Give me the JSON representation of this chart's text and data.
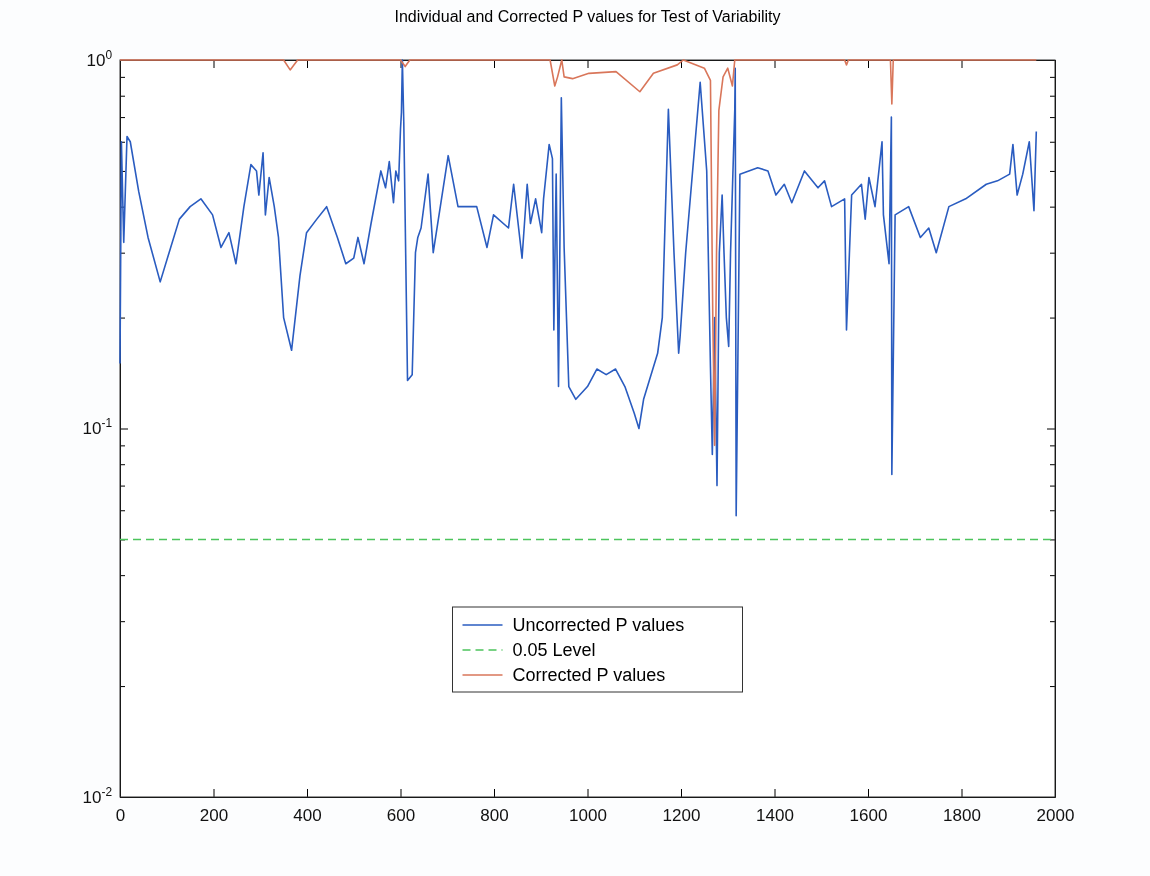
{
  "chart_data": {
    "type": "line",
    "title": "Individual and Corrected P values for Test of Variability",
    "log": "y",
    "xlim": [
      0,
      2000
    ],
    "xticks": [
      0,
      200,
      400,
      600,
      800,
      1000,
      1200,
      1400,
      1600,
      1800,
      2000
    ],
    "ylim": [
      0.01,
      1
    ],
    "yticks": [
      {
        "value": 0.01,
        "label": "10$^{-2}$"
      },
      {
        "value": 0.02,
        "label": null
      },
      {
        "value": 0.03,
        "label": null
      },
      {
        "value": 0.04,
        "label": null
      },
      {
        "value": 0.05,
        "label": null
      },
      {
        "value": 0.06,
        "label": null
      },
      {
        "value": 0.07,
        "label": null
      },
      {
        "value": 0.08,
        "label": null
      },
      {
        "value": 0.09,
        "label": null
      },
      {
        "value": 0.1,
        "label": "10$^{-1}$"
      },
      {
        "value": 0.2,
        "label": null
      },
      {
        "value": 0.3,
        "label": null
      },
      {
        "value": 0.4,
        "label": null
      },
      {
        "value": 0.5,
        "label": null
      },
      {
        "value": 0.6,
        "label": null
      },
      {
        "value": 0.7,
        "label": null
      },
      {
        "value": 0.8,
        "label": null
      },
      {
        "value": 0.9,
        "label": null
      },
      {
        "value": 1,
        "label": "10$^{0}$"
      }
    ],
    "grid": false,
    "legend": "bottom",
    "line_style": "solid",
    "marker": "none",
    "ref_lines": [
      {
        "axis": "y",
        "value": 0.05,
        "label": "0.05 Level",
        "color": "#4cc45c",
        "line_style": "dashed"
      }
    ],
    "series": [
      {
        "name": "Uncorrected P values",
        "color": "#2a5cc0",
        "x": [
          0,
          3,
          8,
          15,
          22,
          40,
          60,
          86,
          105,
          127,
          150,
          173,
          198,
          216,
          233,
          248,
          265,
          280,
          292,
          297,
          306,
          311,
          319,
          330,
          339,
          350,
          367,
          385,
          399,
          421,
          442,
          465,
          483,
          500,
          509,
          522,
          537,
          558,
          568,
          576,
          585,
          590,
          596,
          600,
          602,
          604,
          607,
          615,
          625,
          632,
          637,
          644,
          659,
          670,
          702,
          723,
          763,
          785,
          799,
          831,
          842,
          860,
          871,
          878,
          889,
          902,
          906,
          918,
          925,
          928,
          933,
          938,
          944,
          950,
          960,
          975,
          1000,
          1020,
          1040,
          1060,
          1080,
          1100,
          1110,
          1120,
          1150,
          1160,
          1173,
          1185,
          1195,
          1198,
          1210,
          1241,
          1255,
          1263,
          1267,
          1272,
          1277,
          1282,
          1288,
          1292,
          1297,
          1302,
          1306,
          1315,
          1316,
          1318,
          1326,
          1364,
          1386,
          1403,
          1421,
          1437,
          1464,
          1493,
          1507,
          1522,
          1550,
          1554,
          1565,
          1586,
          1594,
          1602,
          1615,
          1630,
          1633,
          1645,
          1650,
          1651,
          1658,
          1687,
          1712,
          1730,
          1746,
          1773,
          1809,
          1853,
          1877,
          1903,
          1910,
          1919,
          1931,
          1945,
          1955,
          1960
        ],
        "values": [
          0.15,
          0.6,
          0.32,
          0.62,
          0.6,
          0.44,
          0.33,
          0.25,
          0.3,
          0.37,
          0.4,
          0.42,
          0.38,
          0.31,
          0.34,
          0.28,
          0.4,
          0.52,
          0.5,
          0.43,
          0.56,
          0.38,
          0.48,
          0.4,
          0.33,
          0.2,
          0.163,
          0.26,
          0.34,
          0.37,
          0.4,
          0.33,
          0.28,
          0.29,
          0.33,
          0.28,
          0.36,
          0.5,
          0.45,
          0.53,
          0.41,
          0.5,
          0.47,
          0.65,
          0.72,
          1,
          0.68,
          0.135,
          0.14,
          0.3,
          0.33,
          0.35,
          0.49,
          0.3,
          0.55,
          0.4,
          0.4,
          0.31,
          0.38,
          0.35,
          0.46,
          0.29,
          0.46,
          0.36,
          0.42,
          0.34,
          0.42,
          0.59,
          0.54,
          0.185,
          0.49,
          0.13,
          0.79,
          0.31,
          0.13,
          0.12,
          0.13,
          0.145,
          0.14,
          0.145,
          0.13,
          0.11,
          0.1,
          0.12,
          0.16,
          0.2,
          0.735,
          0.3,
          0.16,
          0.177,
          0.3,
          0.87,
          0.5,
          0.147,
          0.085,
          0.2,
          0.07,
          0.3,
          0.43,
          0.3,
          0.2,
          0.167,
          0.3,
          0.73,
          0.95,
          0.058,
          0.49,
          0.51,
          0.5,
          0.43,
          0.46,
          0.41,
          0.5,
          0.45,
          0.47,
          0.4,
          0.42,
          0.185,
          0.43,
          0.46,
          0.37,
          0.48,
          0.4,
          0.6,
          0.38,
          0.28,
          0.7,
          0.075,
          0.38,
          0.4,
          0.33,
          0.35,
          0.3,
          0.4,
          0.42,
          0.46,
          0.47,
          0.49,
          0.59,
          0.43,
          0.49,
          0.6,
          0.39,
          0.64
        ]
      },
      {
        "name": "Corrected P values",
        "color": "#d9765a",
        "x": [
          0,
          350,
          364,
          380,
          600,
          610,
          620,
          920,
          930,
          936,
          945,
          950,
          968,
          1003,
          1061,
          1112,
          1141,
          1192,
          1205,
          1250,
          1263,
          1268,
          1272,
          1276,
          1281,
          1290,
          1300,
          1310,
          1315,
          1320,
          1550,
          1554,
          1558,
          1648,
          1651,
          1654,
          1960
        ],
        "values": [
          1,
          1,
          0.94,
          1,
          1,
          0.96,
          1,
          1,
          0.85,
          0.9,
          1,
          0.9,
          0.89,
          0.92,
          0.93,
          0.82,
          0.92,
          0.97,
          1,
          0.95,
          0.88,
          0.2,
          0.09,
          0.3,
          0.73,
          0.9,
          0.95,
          0.85,
          1,
          1,
          1,
          0.97,
          1,
          1,
          0.76,
          1,
          1
        ]
      }
    ]
  }
}
